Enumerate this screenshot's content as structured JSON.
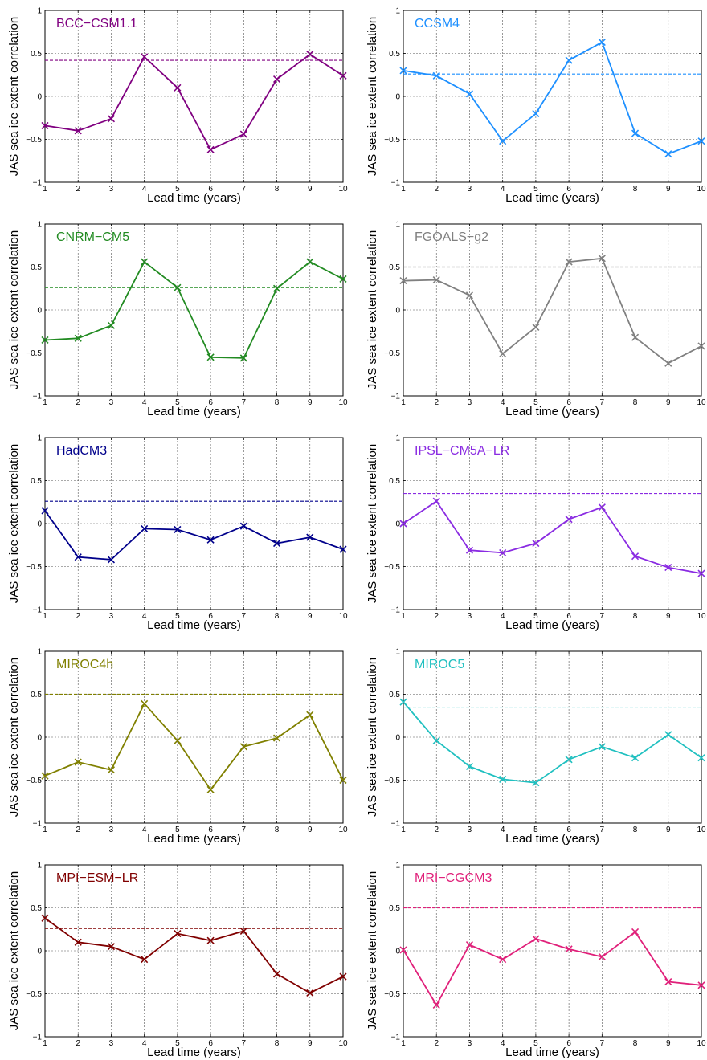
{
  "chart_data": [
    {
      "type": "line",
      "title": "BCC−CSM1.1",
      "color": "#800080",
      "xlabel": "Lead time (years)",
      "ylabel": "JAS sea ice extent correlation",
      "xlim": [
        1,
        10
      ],
      "ylim": [
        -1,
        1
      ],
      "grid": true,
      "x": [
        1,
        2,
        3,
        4,
        5,
        6,
        7,
        8,
        9,
        10
      ],
      "values": [
        -0.34,
        -0.4,
        -0.26,
        0.46,
        0.1,
        -0.62,
        -0.44,
        0.2,
        0.49,
        0.24
      ],
      "threshold": 0.42
    },
    {
      "type": "line",
      "title": "CCSM4",
      "color": "#1e90ff",
      "xlabel": "Lead time (years)",
      "ylabel": "JAS sea ice extent correlation",
      "xlim": [
        1,
        10
      ],
      "ylim": [
        -1,
        1
      ],
      "grid": true,
      "x": [
        1,
        2,
        3,
        4,
        5,
        6,
        7,
        8,
        9,
        10
      ],
      "values": [
        0.3,
        0.24,
        0.03,
        -0.52,
        -0.2,
        0.42,
        0.63,
        -0.43,
        -0.67,
        -0.52
      ],
      "threshold": 0.26
    },
    {
      "type": "line",
      "title": "CNRM−CM5",
      "color": "#228b22",
      "xlabel": "Lead time (years)",
      "ylabel": "JAS sea ice extent correlation",
      "xlim": [
        1,
        10
      ],
      "ylim": [
        -1,
        1
      ],
      "grid": true,
      "x": [
        1,
        2,
        3,
        4,
        5,
        6,
        7,
        8,
        9,
        10
      ],
      "values": [
        -0.35,
        -0.33,
        -0.18,
        0.56,
        0.26,
        -0.55,
        -0.56,
        0.25,
        0.56,
        0.36
      ],
      "threshold": 0.26
    },
    {
      "type": "line",
      "title": "FGOALS−g2",
      "color": "#808080",
      "xlabel": "Lead time (years)",
      "ylabel": "JAS sea ice extent correlation",
      "xlim": [
        1,
        10
      ],
      "ylim": [
        -1,
        1
      ],
      "grid": true,
      "x": [
        1,
        2,
        3,
        4,
        5,
        6,
        7,
        8,
        9,
        10
      ],
      "values": [
        0.34,
        0.35,
        0.17,
        -0.51,
        -0.2,
        0.56,
        0.6,
        -0.32,
        -0.62,
        -0.42
      ],
      "threshold": 0.5
    },
    {
      "type": "line",
      "title": "HadCM3",
      "color": "#00008b",
      "xlabel": "Lead time (years)",
      "ylabel": "JAS sea ice extent correlation",
      "xlim": [
        1,
        10
      ],
      "ylim": [
        -1,
        1
      ],
      "grid": true,
      "x": [
        1,
        2,
        3,
        4,
        5,
        6,
        7,
        8,
        9,
        10
      ],
      "values": [
        0.15,
        -0.39,
        -0.42,
        -0.06,
        -0.07,
        -0.19,
        -0.03,
        -0.23,
        -0.16,
        -0.3
      ],
      "threshold": 0.26
    },
    {
      "type": "line",
      "title": "IPSL−CM5A−LR",
      "color": "#8a2be2",
      "xlabel": "Lead time (years)",
      "ylabel": "JAS sea ice extent correlation",
      "xlim": [
        1,
        10
      ],
      "ylim": [
        -1,
        1
      ],
      "grid": true,
      "x": [
        1,
        2,
        3,
        4,
        5,
        6,
        7,
        8,
        9,
        10
      ],
      "values": [
        0.0,
        0.26,
        -0.31,
        -0.34,
        -0.23,
        0.05,
        0.19,
        -0.38,
        -0.51,
        -0.58
      ],
      "threshold": 0.35
    },
    {
      "type": "line",
      "title": "MIROC4h",
      "color": "#808000",
      "xlabel": "Lead time (years)",
      "ylabel": "JAS sea ice extent correlation",
      "xlim": [
        1,
        10
      ],
      "ylim": [
        -1,
        1
      ],
      "grid": true,
      "x": [
        1,
        2,
        3,
        4,
        5,
        6,
        7,
        8,
        9,
        10
      ],
      "values": [
        -0.45,
        -0.29,
        -0.38,
        0.39,
        -0.04,
        -0.61,
        -0.11,
        -0.01,
        0.26,
        -0.5
      ],
      "threshold": 0.5
    },
    {
      "type": "line",
      "title": "MIROC5",
      "color": "#20c0c0",
      "xlabel": "Lead time (years)",
      "ylabel": "JAS sea ice extent correlation",
      "xlim": [
        1,
        10
      ],
      "ylim": [
        -1,
        1
      ],
      "grid": true,
      "x": [
        1,
        2,
        3,
        4,
        5,
        6,
        7,
        8,
        9,
        10
      ],
      "values": [
        0.41,
        -0.04,
        -0.34,
        -0.49,
        -0.53,
        -0.26,
        -0.11,
        -0.24,
        0.03,
        -0.24
      ],
      "threshold": 0.35
    },
    {
      "type": "line",
      "title": "MPI−ESM−LR",
      "color": "#800000",
      "xlabel": "Lead time (years)",
      "ylabel": "JAS sea ice extent correlation",
      "xlim": [
        1,
        10
      ],
      "ylim": [
        -1,
        1
      ],
      "grid": true,
      "x": [
        1,
        2,
        3,
        4,
        5,
        6,
        7,
        8,
        9,
        10
      ],
      "values": [
        0.38,
        0.1,
        0.05,
        -0.1,
        0.2,
        0.12,
        0.23,
        -0.27,
        -0.49,
        -0.3
      ],
      "threshold": 0.26
    },
    {
      "type": "line",
      "title": "MRI−CGCM3",
      "color": "#e0207a",
      "xlabel": "Lead time (years)",
      "ylabel": "JAS sea ice extent correlation",
      "xlim": [
        1,
        10
      ],
      "ylim": [
        -1,
        1
      ],
      "grid": true,
      "x": [
        1,
        2,
        3,
        4,
        5,
        6,
        7,
        8,
        9,
        10
      ],
      "values": [
        0.01,
        -0.63,
        0.07,
        -0.1,
        0.14,
        0.02,
        -0.07,
        0.22,
        -0.36,
        -0.4
      ],
      "threshold": 0.5
    }
  ],
  "axis": {
    "xticks": [
      1,
      2,
      3,
      4,
      5,
      6,
      7,
      8,
      9,
      10
    ],
    "yticks": [
      -1,
      -0.5,
      0,
      0.5,
      1
    ],
    "ytick_labels": [
      "−1",
      "−0.5",
      "0",
      "0.5",
      "1"
    ]
  }
}
